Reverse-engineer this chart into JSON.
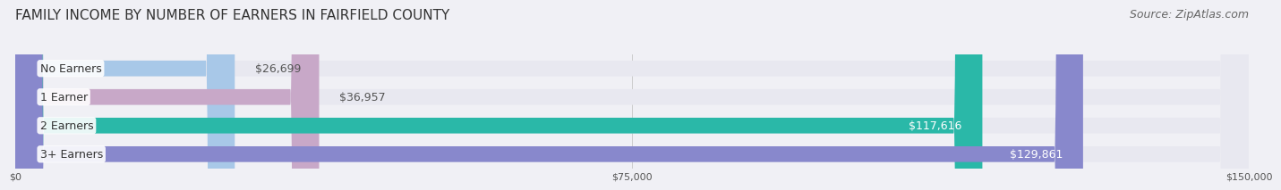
{
  "title": "FAMILY INCOME BY NUMBER OF EARNERS IN FAIRFIELD COUNTY",
  "source": "Source: ZipAtlas.com",
  "categories": [
    "No Earners",
    "1 Earner",
    "2 Earners",
    "3+ Earners"
  ],
  "values": [
    26699,
    36957,
    117616,
    129861
  ],
  "bar_colors": [
    "#a8c8e8",
    "#c8a8c8",
    "#2ab8a8",
    "#8888cc"
  ],
  "label_colors": [
    "#333333",
    "#333333",
    "#ffffff",
    "#ffffff"
  ],
  "xlim": [
    0,
    150000
  ],
  "xticks": [
    0,
    75000,
    150000
  ],
  "xtick_labels": [
    "$0",
    "$75,000",
    "$150,000"
  ],
  "background_color": "#f0f0f5",
  "bar_bg_color": "#e8e8f0",
  "title_fontsize": 11,
  "source_fontsize": 9,
  "bar_height": 0.55,
  "label_fontsize": 9
}
